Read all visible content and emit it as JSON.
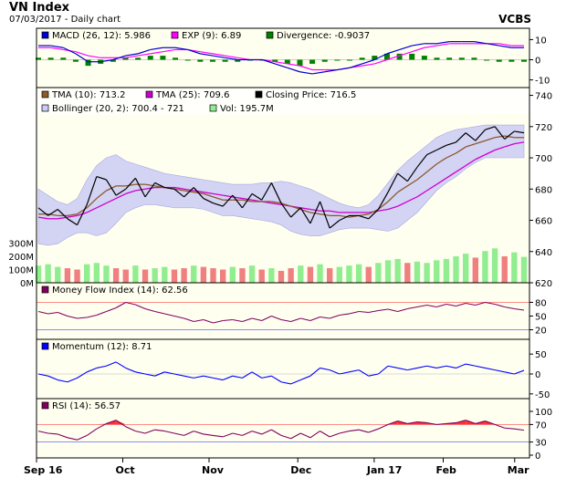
{
  "header": {
    "title": "VN Index",
    "subtitle": "07/03/2017 - Daily chart",
    "brand": "VCBS"
  },
  "colors": {
    "panel_bg": "#fffff0",
    "band_fill": "#ccccf5",
    "close": "#000000",
    "tma10": "#8b5a2b",
    "tma25": "#cc00cc",
    "macd": "#0000cc",
    "exp": "#ff00ff",
    "divergence": "#008000",
    "vol_up": "#90ee90",
    "vol_down": "#f08080",
    "mfi": "#800060",
    "momentum": "#0000ff",
    "rsi": "#800060",
    "rsi_fill": "#ff3030",
    "refline": "#ff6666",
    "refline_blue": "#6666ff"
  },
  "chart_data": [
    {
      "id": "macd",
      "type": "line",
      "legend": [
        {
          "label": "MACD (26, 12): 5.986",
          "color": "#0000cc"
        },
        {
          "label": "EXP (9): 6.89",
          "color": "#ff00ff"
        },
        {
          "label": "Divergence: -0.9037",
          "color": "#008000"
        }
      ],
      "ylim": [
        -12,
        12
      ],
      "ticks": [
        "10",
        "0",
        "-10"
      ],
      "tick_values": [
        10,
        0,
        -10
      ],
      "series": [
        {
          "values": [
            7,
            7,
            6,
            3,
            -1,
            -1,
            0,
            2,
            3,
            5,
            6,
            6,
            5,
            3,
            2,
            1,
            0,
            0,
            0,
            -2,
            -4,
            -6,
            -7,
            -6,
            -5,
            -4,
            -2,
            0,
            3,
            5,
            7,
            8,
            8,
            9,
            9,
            9,
            8,
            7,
            6,
            6
          ]
        },
        {
          "values": [
            6,
            6,
            5,
            4,
            2,
            1,
            1,
            1,
            2,
            3,
            4,
            5,
            5,
            4,
            3,
            2,
            1,
            0,
            0,
            -1,
            -2,
            -3,
            -5,
            -5,
            -5,
            -4,
            -3,
            -2,
            0,
            2,
            4,
            6,
            7,
            8,
            8,
            8,
            8,
            8,
            7,
            7
          ]
        }
      ],
      "divergence": [
        1,
        1,
        1,
        -1,
        -3,
        -2,
        -1,
        1,
        1,
        2,
        2,
        1,
        0,
        -1,
        -1,
        -1,
        -1,
        0,
        0,
        -1,
        -2,
        -3,
        -2,
        -1,
        0,
        0,
        1,
        2,
        3,
        3,
        3,
        2,
        1,
        1,
        1,
        1,
        0,
        -1,
        -1,
        -1
      ]
    },
    {
      "id": "price",
      "type": "line",
      "legend": [
        {
          "label": "TMA (10): 713.2",
          "color": "#8b5a2b"
        },
        {
          "label": "TMA (25): 709.6",
          "color": "#cc00cc"
        },
        {
          "label": "Closing Price: 716.5",
          "color": "#000000"
        },
        {
          "label": "Bollinger (20, 2): 700.4 - 721",
          "color": "#ccccf5"
        },
        {
          "label": "Vol: 195.7M",
          "color": "#90ee90"
        }
      ],
      "ylim": [
        620,
        745
      ],
      "ticks": [
        "740",
        "720",
        "700",
        "680",
        "660",
        "640",
        "620"
      ],
      "tick_values": [
        740,
        720,
        700,
        680,
        660,
        640,
        620
      ],
      "vol_ticks": [
        "300M",
        "200M",
        "100M",
        "0M"
      ],
      "vol_tick_values": [
        300,
        200,
        100,
        0
      ],
      "vol_max": 400,
      "close": [
        668,
        663,
        667,
        661,
        657,
        670,
        688,
        686,
        676,
        680,
        687,
        675,
        684,
        681,
        680,
        675,
        681,
        674,
        671,
        669,
        676,
        668,
        677,
        673,
        684,
        671,
        662,
        668,
        658,
        672,
        655,
        660,
        663,
        663,
        661,
        667,
        678,
        690,
        685,
        694,
        702,
        705,
        708,
        710,
        716,
        711,
        718,
        720,
        712,
        717,
        716
      ],
      "tma10": [
        664,
        664,
        663,
        663,
        664,
        668,
        674,
        679,
        682,
        682,
        683,
        683,
        682,
        681,
        680,
        679,
        678,
        677,
        675,
        673,
        673,
        673,
        672,
        672,
        672,
        671,
        669,
        667,
        665,
        664,
        663,
        663,
        662,
        663,
        664,
        667,
        672,
        678,
        682,
        686,
        691,
        696,
        700,
        703,
        707,
        709,
        711,
        713,
        714,
        713,
        713
      ],
      "tma25": [
        662,
        661,
        661,
        662,
        663,
        665,
        668,
        671,
        674,
        677,
        679,
        680,
        681,
        681,
        681,
        680,
        679,
        678,
        677,
        676,
        675,
        674,
        673,
        672,
        671,
        670,
        669,
        668,
        667,
        666,
        666,
        665,
        665,
        665,
        665,
        666,
        667,
        669,
        672,
        675,
        679,
        683,
        687,
        691,
        695,
        699,
        702,
        705,
        707,
        709,
        710
      ],
      "upper": [
        680,
        676,
        672,
        670,
        674,
        686,
        695,
        700,
        702,
        698,
        696,
        694,
        692,
        690,
        689,
        688,
        687,
        686,
        685,
        684,
        683,
        683,
        683,
        684,
        684,
        685,
        684,
        682,
        680,
        677,
        674,
        671,
        669,
        668,
        670,
        676,
        684,
        692,
        698,
        703,
        708,
        713,
        716,
        718,
        719,
        720,
        721,
        721,
        721,
        721,
        721
      ],
      "lower": [
        645,
        644,
        645,
        649,
        652,
        652,
        650,
        652,
        658,
        665,
        668,
        670,
        670,
        669,
        668,
        668,
        668,
        667,
        665,
        663,
        663,
        662,
        661,
        660,
        659,
        657,
        653,
        651,
        650,
        650,
        652,
        654,
        655,
        655,
        655,
        654,
        653,
        655,
        660,
        665,
        672,
        679,
        684,
        688,
        693,
        697,
        700,
        700,
        700,
        700,
        700
      ],
      "volume_up": [
        true,
        true,
        true,
        false,
        false,
        true,
        true,
        true,
        false,
        false,
        true,
        false,
        true,
        true,
        false,
        false,
        true,
        false,
        false,
        false,
        true,
        false,
        true,
        false,
        true,
        false,
        false,
        true,
        false,
        true,
        false,
        true,
        true,
        true,
        false,
        true,
        true,
        true,
        false,
        true,
        true,
        true,
        true,
        true,
        true,
        false,
        true,
        true,
        false,
        true,
        true
      ],
      "volume": [
        130,
        140,
        120,
        110,
        100,
        140,
        150,
        130,
        110,
        100,
        130,
        100,
        110,
        120,
        100,
        110,
        130,
        120,
        110,
        100,
        120,
        110,
        130,
        100,
        110,
        90,
        110,
        130,
        120,
        140,
        110,
        120,
        130,
        140,
        120,
        150,
        170,
        180,
        150,
        160,
        150,
        170,
        180,
        200,
        220,
        190,
        240,
        260,
        200,
        230,
        196
      ]
    },
    {
      "id": "mfi",
      "type": "line",
      "legend": [
        {
          "label": "Money Flow Index (14): 62.56",
          "color": "#800060"
        }
      ],
      "ylim": [
        5,
        95
      ],
      "ticks": [
        "80",
        "50",
        "20"
      ],
      "tick_values": [
        80,
        50,
        20
      ],
      "reference_lines": [
        80,
        20
      ],
      "values": [
        60,
        55,
        58,
        50,
        45,
        47,
        52,
        60,
        68,
        80,
        75,
        66,
        60,
        55,
        50,
        45,
        38,
        42,
        35,
        40,
        42,
        38,
        45,
        40,
        50,
        42,
        38,
        45,
        40,
        48,
        45,
        52,
        55,
        60,
        58,
        62,
        65,
        60,
        66,
        70,
        74,
        70,
        76,
        72,
        78,
        74,
        80,
        76,
        70,
        66,
        63
      ]
    },
    {
      "id": "momentum",
      "type": "line",
      "legend": [
        {
          "label": "Momentum (12): 8.71",
          "color": "#0000ff"
        }
      ],
      "ylim": [
        -55,
        55
      ],
      "ticks": [
        "50",
        "0",
        "-50"
      ],
      "tick_values": [
        50,
        0,
        -50
      ],
      "values": [
        0,
        -5,
        -15,
        -20,
        -10,
        5,
        15,
        20,
        30,
        15,
        5,
        0,
        -5,
        5,
        0,
        -5,
        -10,
        -5,
        -10,
        -15,
        -5,
        -10,
        5,
        -10,
        -5,
        -20,
        -25,
        -15,
        -5,
        15,
        10,
        0,
        5,
        10,
        -5,
        0,
        20,
        15,
        10,
        15,
        20,
        15,
        20,
        15,
        25,
        20,
        15,
        10,
        5,
        0,
        9
      ]
    },
    {
      "id": "rsi",
      "type": "line",
      "legend": [
        {
          "label": "RSI (14): 56.57",
          "color": "#800060"
        }
      ],
      "ylim": [
        0,
        100
      ],
      "ticks": [
        "100",
        "70",
        "30",
        "0"
      ],
      "tick_values": [
        100,
        70,
        30,
        0
      ],
      "reference_lines": [
        70,
        30
      ],
      "values": [
        55,
        50,
        48,
        40,
        35,
        45,
        60,
        72,
        80,
        65,
        55,
        50,
        58,
        55,
        50,
        45,
        55,
        48,
        45,
        42,
        50,
        45,
        55,
        48,
        58,
        45,
        38,
        50,
        40,
        55,
        42,
        50,
        55,
        58,
        52,
        60,
        70,
        78,
        72,
        76,
        74,
        70,
        72,
        74,
        80,
        72,
        78,
        70,
        62,
        60,
        57
      ]
    }
  ],
  "x_axis": {
    "labels": [
      "Sep 16",
      "Oct",
      "Nov",
      "Dec",
      "Jan 17",
      "Feb",
      "Mar"
    ],
    "positions": [
      0,
      0.175,
      0.35,
      0.53,
      0.685,
      0.825,
      0.97
    ]
  }
}
